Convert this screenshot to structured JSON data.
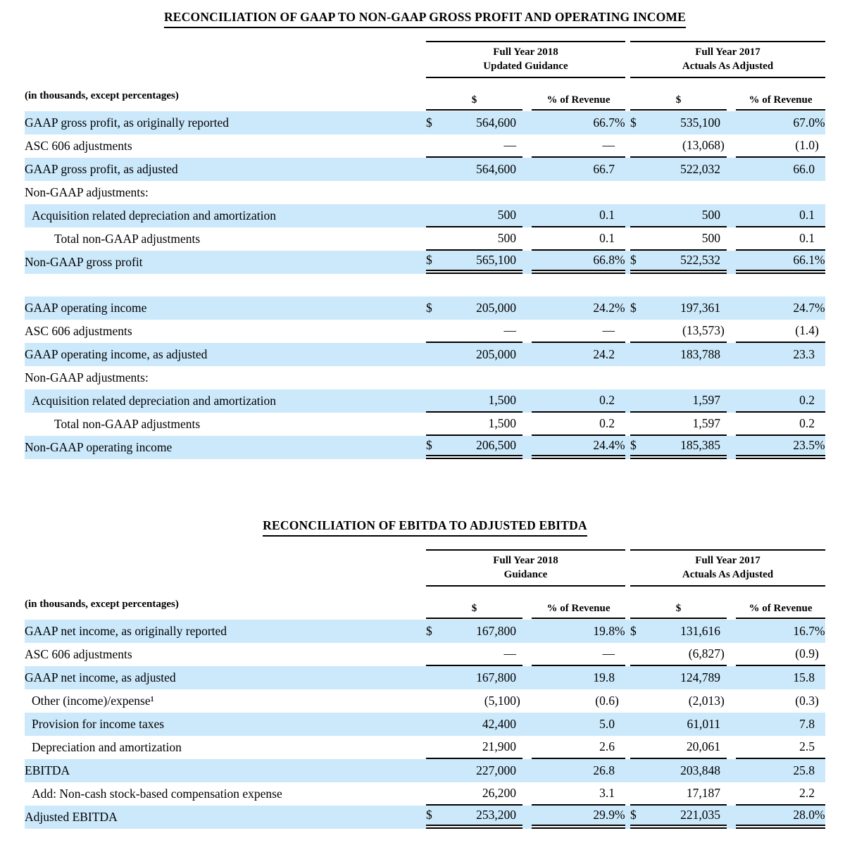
{
  "highlight_color": "#cce9fb",
  "rule_color": "#000000",
  "table1": {
    "title": "RECONCILIATION OF GAAP TO NON-GAAP GROSS PROFIT AND OPERATING INCOME",
    "col_groups": [
      {
        "line1": "Full Year 2018",
        "line2": "Updated Guidance"
      },
      {
        "line1": "Full Year 2017",
        "line2": "Actuals As Adjusted"
      }
    ],
    "subheader_label": "(in thousands, except percentages)",
    "subheaders": [
      "$",
      "% of Revenue",
      "$",
      "% of Revenue"
    ],
    "rows": [
      {
        "label": "GAAP gross profit, as originally reported",
        "indent": 0,
        "shade": true,
        "d1": "$",
        "v1": "564,600",
        "p1": "66.7%",
        "d2": "$",
        "v2": "535,100",
        "p2": "67.0%",
        "rule": "none"
      },
      {
        "label": "ASC 606 adjustments",
        "indent": 0,
        "shade": false,
        "d1": "",
        "v1": "—",
        "p1": "—",
        "d2": "",
        "v2": "(13,068)",
        "p2": "(1.0)",
        "rule": "single"
      },
      {
        "label": "GAAP gross profit, as adjusted",
        "indent": 0,
        "shade": true,
        "d1": "",
        "v1": "564,600",
        "p1": "66.7",
        "d2": "",
        "v2": "522,032",
        "p2": "66.0",
        "rule": "none"
      },
      {
        "label": "Non-GAAP adjustments:",
        "indent": 0,
        "shade": false,
        "d1": "",
        "v1": "",
        "p1": "",
        "d2": "",
        "v2": "",
        "p2": "",
        "rule": "none"
      },
      {
        "label": "Acquisition related depreciation and amortization",
        "indent": 1,
        "shade": true,
        "d1": "",
        "v1": "500",
        "p1": "0.1",
        "d2": "",
        "v2": "500",
        "p2": "0.1",
        "rule": "single"
      },
      {
        "label": "Total non-GAAP adjustments",
        "indent": 2,
        "shade": false,
        "d1": "",
        "v1": "500",
        "p1": "0.1",
        "d2": "",
        "v2": "500",
        "p2": "0.1",
        "rule": "single"
      },
      {
        "label": "Non-GAAP gross profit",
        "indent": 0,
        "shade": true,
        "d1": "$",
        "v1": "565,100",
        "p1": "66.8%",
        "d2": "$",
        "v2": "522,532",
        "p2": "66.1%",
        "rule": "double"
      },
      {
        "spacer": true
      },
      {
        "label": "GAAP operating income",
        "indent": 0,
        "shade": true,
        "d1": "$",
        "v1": "205,000",
        "p1": "24.2%",
        "d2": "$",
        "v2": "197,361",
        "p2": "24.7%",
        "rule": "none"
      },
      {
        "label": "ASC 606 adjustments",
        "indent": 0,
        "shade": false,
        "d1": "",
        "v1": "—",
        "p1": "—",
        "d2": "",
        "v2": "(13,573)",
        "p2": "(1.4)",
        "rule": "single"
      },
      {
        "label": "GAAP operating income, as adjusted",
        "indent": 0,
        "shade": true,
        "d1": "",
        "v1": "205,000",
        "p1": "24.2",
        "d2": "",
        "v2": "183,788",
        "p2": "23.3",
        "rule": "none"
      },
      {
        "label": "Non-GAAP adjustments:",
        "indent": 0,
        "shade": false,
        "d1": "",
        "v1": "",
        "p1": "",
        "d2": "",
        "v2": "",
        "p2": "",
        "rule": "none"
      },
      {
        "label": "Acquisition related depreciation and amortization",
        "indent": 1,
        "shade": true,
        "d1": "",
        "v1": "1,500",
        "p1": "0.2",
        "d2": "",
        "v2": "1,597",
        "p2": "0.2",
        "rule": "single"
      },
      {
        "label": "Total non-GAAP adjustments",
        "indent": 2,
        "shade": false,
        "d1": "",
        "v1": "1,500",
        "p1": "0.2",
        "d2": "",
        "v2": "1,597",
        "p2": "0.2",
        "rule": "single"
      },
      {
        "label": "Non-GAAP operating income",
        "indent": 0,
        "shade": true,
        "d1": "$",
        "v1": "206,500",
        "p1": "24.4%",
        "d2": "$",
        "v2": "185,385",
        "p2": "23.5%",
        "rule": "double"
      }
    ]
  },
  "table2": {
    "title": "RECONCILIATION OF EBITDA TO ADJUSTED EBITDA",
    "col_groups": [
      {
        "line1": "Full Year 2018",
        "line2": "Guidance"
      },
      {
        "line1": "Full Year 2017",
        "line2": "Actuals As Adjusted"
      }
    ],
    "subheader_label": "(in thousands, except percentages)",
    "subheaders": [
      "$",
      "% of Revenue",
      "$",
      "% of Revenue"
    ],
    "rows": [
      {
        "label": "GAAP net income, as originally reported",
        "indent": 0,
        "shade": true,
        "d1": "$",
        "v1": "167,800",
        "p1": "19.8%",
        "d2": "$",
        "v2": "131,616",
        "p2": "16.7%",
        "rule": "none"
      },
      {
        "label": "ASC 606 adjustments",
        "indent": 0,
        "shade": false,
        "d1": "",
        "v1": "—",
        "p1": "—",
        "d2": "",
        "v2": "(6,827)",
        "p2": "(0.9)",
        "rule": "single"
      },
      {
        "label": "GAAP net income, as adjusted",
        "indent": 0,
        "shade": true,
        "d1": "",
        "v1": "167,800",
        "p1": "19.8",
        "d2": "",
        "v2": "124,789",
        "p2": "15.8",
        "rule": "none"
      },
      {
        "label": "Other (income)/expense¹",
        "indent": 1,
        "shade": false,
        "d1": "",
        "v1": "(5,100)",
        "p1": "(0.6)",
        "d2": "",
        "v2": "(2,013)",
        "p2": "(0.3)",
        "rule": "none"
      },
      {
        "label": "Provision for income taxes",
        "indent": 1,
        "shade": true,
        "d1": "",
        "v1": "42,400",
        "p1": "5.0",
        "d2": "",
        "v2": "61,011",
        "p2": "7.8",
        "rule": "none"
      },
      {
        "label": "Depreciation and amortization",
        "indent": 1,
        "shade": false,
        "d1": "",
        "v1": "21,900",
        "p1": "2.6",
        "d2": "",
        "v2": "20,061",
        "p2": "2.5",
        "rule": "single"
      },
      {
        "label": "EBITDA",
        "indent": 0,
        "shade": true,
        "d1": "",
        "v1": "227,000",
        "p1": "26.8",
        "d2": "",
        "v2": "203,848",
        "p2": "25.8",
        "rule": "none"
      },
      {
        "label": "Add: Non-cash stock-based compensation expense",
        "indent": 1,
        "shade": false,
        "d1": "",
        "v1": "26,200",
        "p1": "3.1",
        "d2": "",
        "v2": "17,187",
        "p2": "2.2",
        "rule": "single"
      },
      {
        "label": "Adjusted EBITDA",
        "indent": 0,
        "shade": true,
        "d1": "$",
        "v1": "253,200",
        "p1": "29.9%",
        "d2": "$",
        "v2": "221,035",
        "p2": "28.0%",
        "rule": "double"
      }
    ]
  }
}
